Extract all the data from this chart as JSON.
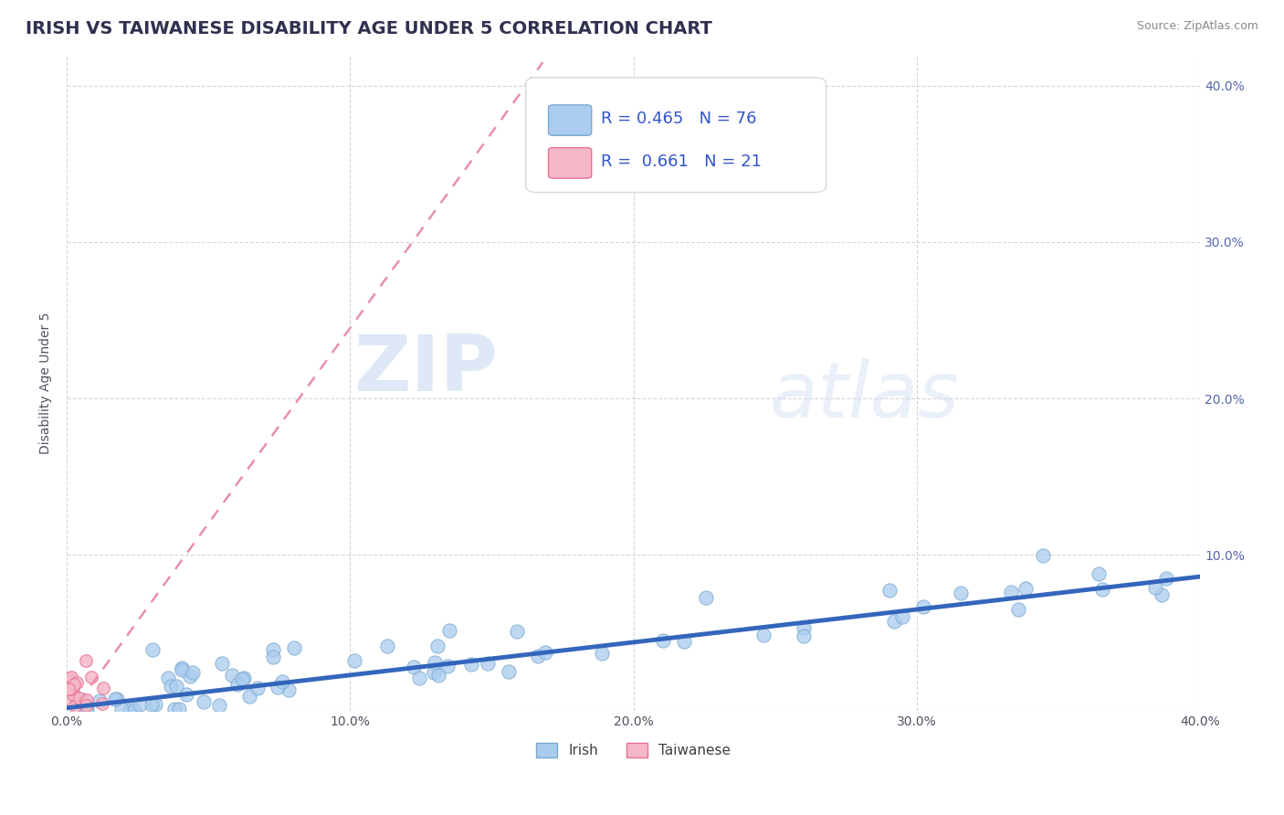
{
  "title": "IRISH VS TAIWANESE DISABILITY AGE UNDER 5 CORRELATION CHART",
  "source_text": "Source: ZipAtlas.com",
  "ylabel": "Disability Age Under 5",
  "xlim": [
    0.0,
    0.4
  ],
  "ylim": [
    0.0,
    0.42
  ],
  "xticks": [
    0.0,
    0.1,
    0.2,
    0.3,
    0.4
  ],
  "yticks": [
    0.0,
    0.1,
    0.2,
    0.3,
    0.4
  ],
  "xticklabels": [
    "0.0%",
    "10.0%",
    "20.0%",
    "30.0%",
    "40.0%"
  ],
  "yticklabels_right": [
    "10.0%",
    "20.0%",
    "30.0%",
    "40.0%"
  ],
  "irish_color": "#aaccee",
  "irish_edge_color": "#7aaad0",
  "taiwanese_color": "#f5b8c8",
  "taiwanese_edge_color": "#e87090",
  "irish_line_color": "#3366bb",
  "taiwanese_line_color": "#e890a8",
  "legend_irish_R": "0.465",
  "legend_irish_N": "76",
  "legend_taiwanese_R": "0.661",
  "legend_taiwanese_N": "21",
  "background_color": "#ffffff",
  "grid_color": "#cccccc",
  "watermark_zip": "ZIP",
  "watermark_atlas": "atlas",
  "title_fontsize": 14,
  "axis_fontsize": 10,
  "tick_fontsize": 10,
  "legend_fontsize": 13,
  "irish_line_slope": 0.21,
  "irish_line_intercept": 0.002,
  "taiwanese_line_slope": 2.5,
  "taiwanese_line_intercept": -0.005
}
